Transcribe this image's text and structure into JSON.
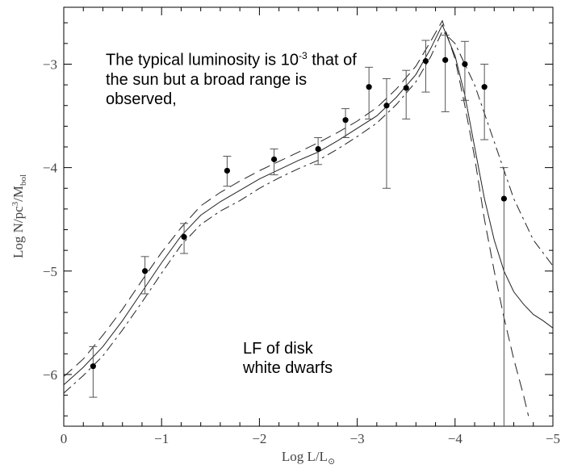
{
  "chart_data": {
    "type": "line",
    "x_axis": {
      "label_main": "Log  L/L",
      "label_sub": "⊙",
      "ticks": [
        "0",
        "−1",
        "−2",
        "−3",
        "−4",
        "−5"
      ],
      "range": [
        0,
        -5
      ]
    },
    "y_axis": {
      "label_main": "Log  N/pc",
      "label_sup": "3",
      "label_mid": "/M",
      "label_sub": "bol",
      "ticks": [
        "−3",
        "−4",
        "−5",
        "−6"
      ],
      "range": [
        -2.45,
        -6.5
      ]
    },
    "annotations": {
      "typical_pre": "The typical luminosity is 10",
      "typical_exp": "-3",
      "typical_post": "that of the sun but a broad range is observed,",
      "lf_line1": "LF of disk",
      "lf_line2": "white dwarfs"
    },
    "observed_points": [
      {
        "x": -0.3,
        "y": -5.92,
        "err_lo": -6.22,
        "err_hi": -5.73
      },
      {
        "x": -0.83,
        "y": -5.0,
        "err_lo": -5.22,
        "err_hi": -4.86
      },
      {
        "x": -1.23,
        "y": -4.67,
        "err_lo": -4.83,
        "err_hi": -4.54
      },
      {
        "x": -1.67,
        "y": -4.03,
        "err_lo": -4.18,
        "err_hi": -3.89
      },
      {
        "x": -2.15,
        "y": -3.92,
        "err_lo": -4.07,
        "err_hi": -3.82
      },
      {
        "x": -2.6,
        "y": -3.82,
        "err_lo": -3.97,
        "err_hi": -3.71
      },
      {
        "x": -2.88,
        "y": -3.54,
        "err_lo": -3.71,
        "err_hi": -3.43
      },
      {
        "x": -3.12,
        "y": -3.22,
        "err_lo": -3.53,
        "err_hi": -3.03
      },
      {
        "x": -3.3,
        "y": -3.4,
        "err_lo": -4.2,
        "err_hi": -3.14
      },
      {
        "x": -3.5,
        "y": -3.23,
        "err_lo": -3.53,
        "err_hi": -3.06
      },
      {
        "x": -3.7,
        "y": -2.97,
        "err_lo": -3.27,
        "err_hi": -2.77
      },
      {
        "x": -3.9,
        "y": -2.96,
        "err_lo": -3.46,
        "err_hi": -2.72
      },
      {
        "x": -4.1,
        "y": -3.0,
        "err_lo": -3.35,
        "err_hi": -2.78
      },
      {
        "x": -4.3,
        "y": -3.22,
        "err_lo": -3.73,
        "err_hi": -3.0
      },
      {
        "x": -4.5,
        "y": -4.3,
        "err_lo": -6.5,
        "err_hi": -4.0
      }
    ],
    "series": [
      {
        "style": "solid",
        "x": [
          0,
          -0.2,
          -0.4,
          -0.6,
          -0.8,
          -1.0,
          -1.2,
          -1.4,
          -1.6,
          -1.8,
          -2.0,
          -2.2,
          -2.4,
          -2.6,
          -2.8,
          -3.0,
          -3.2,
          -3.4,
          -3.6,
          -3.75,
          -3.87,
          -4.0,
          -4.1,
          -4.2,
          -4.3,
          -4.4,
          -4.5,
          -4.6,
          -4.7,
          -4.8,
          -4.9,
          -5.0
        ],
        "y": [
          -6.1,
          -5.93,
          -5.73,
          -5.48,
          -5.2,
          -4.92,
          -4.66,
          -4.46,
          -4.33,
          -4.22,
          -4.11,
          -4.02,
          -3.93,
          -3.85,
          -3.74,
          -3.62,
          -3.5,
          -3.32,
          -3.1,
          -2.85,
          -2.62,
          -2.92,
          -3.3,
          -3.8,
          -4.3,
          -4.7,
          -5.0,
          -5.2,
          -5.32,
          -5.42,
          -5.48,
          -5.55
        ]
      },
      {
        "style": "dashed",
        "x": [
          0,
          -0.2,
          -0.4,
          -0.6,
          -0.8,
          -1.0,
          -1.2,
          -1.4,
          -1.6,
          -1.8,
          -2.0,
          -2.2,
          -2.4,
          -2.6,
          -2.8,
          -3.0,
          -3.2,
          -3.4,
          -3.6,
          -3.75,
          -3.87,
          -4.0,
          -4.1,
          -4.2,
          -4.3,
          -4.4,
          -4.5,
          -4.6,
          -4.7,
          -4.75
        ],
        "y": [
          -6.02,
          -5.85,
          -5.62,
          -5.37,
          -5.09,
          -4.82,
          -4.58,
          -4.37,
          -4.24,
          -4.13,
          -4.03,
          -3.94,
          -3.85,
          -3.76,
          -3.66,
          -3.55,
          -3.42,
          -3.24,
          -3.02,
          -2.78,
          -2.58,
          -2.95,
          -3.4,
          -3.9,
          -4.5,
          -5.0,
          -5.45,
          -5.85,
          -6.2,
          -6.4
        ]
      },
      {
        "style": "dashdot",
        "x": [
          0,
          -0.2,
          -0.4,
          -0.6,
          -0.8,
          -1.0,
          -1.2,
          -1.4,
          -1.6,
          -1.8,
          -2.0,
          -2.2,
          -2.4,
          -2.6,
          -2.8,
          -3.0,
          -3.2,
          -3.4,
          -3.6,
          -3.75,
          -3.87,
          -4.0,
          -4.2,
          -4.4,
          -4.6,
          -4.8,
          -5.0
        ],
        "y": [
          -6.18,
          -6.01,
          -5.82,
          -5.57,
          -5.3,
          -5.02,
          -4.75,
          -4.55,
          -4.42,
          -4.32,
          -4.2,
          -4.1,
          -4.01,
          -3.93,
          -3.82,
          -3.7,
          -3.57,
          -3.39,
          -3.17,
          -2.93,
          -2.68,
          -2.8,
          -3.2,
          -3.75,
          -4.3,
          -4.7,
          -4.95
        ]
      }
    ]
  }
}
